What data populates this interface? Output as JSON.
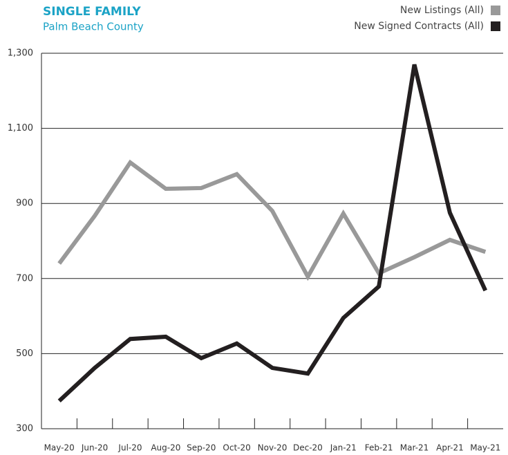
{
  "chart_data": {
    "type": "line",
    "title": "SINGLE FAMILY",
    "subtitle": "Palm Beach County",
    "categories": [
      "May-20",
      "Jun-20",
      "Jul-20",
      "Aug-20",
      "Sep-20",
      "Oct-20",
      "Nov-20",
      "Dec-20",
      "Jan-21",
      "Feb-21",
      "Mar-21",
      "Apr-21",
      "May-21"
    ],
    "series": [
      {
        "name": "New Listings (All)",
        "color": "#999999",
        "values": [
          740,
          867,
          1009,
          939,
          941,
          978,
          880,
          705,
          873,
          714,
          757,
          803,
          771
        ]
      },
      {
        "name": "New Signed Contracts (All)",
        "color": "#231f20",
        "values": [
          374,
          462,
          539,
          545,
          488,
          527,
          462,
          447,
          595,
          679,
          1270,
          875,
          668
        ]
      }
    ],
    "ylim": [
      300,
      1300
    ],
    "yticks": [
      300,
      500,
      700,
      900,
      {
        "value": 1100,
        "label": "1,100"
      },
      {
        "value": 1300,
        "label": "1,300"
      }
    ],
    "grid": true,
    "legend": "top-right"
  }
}
